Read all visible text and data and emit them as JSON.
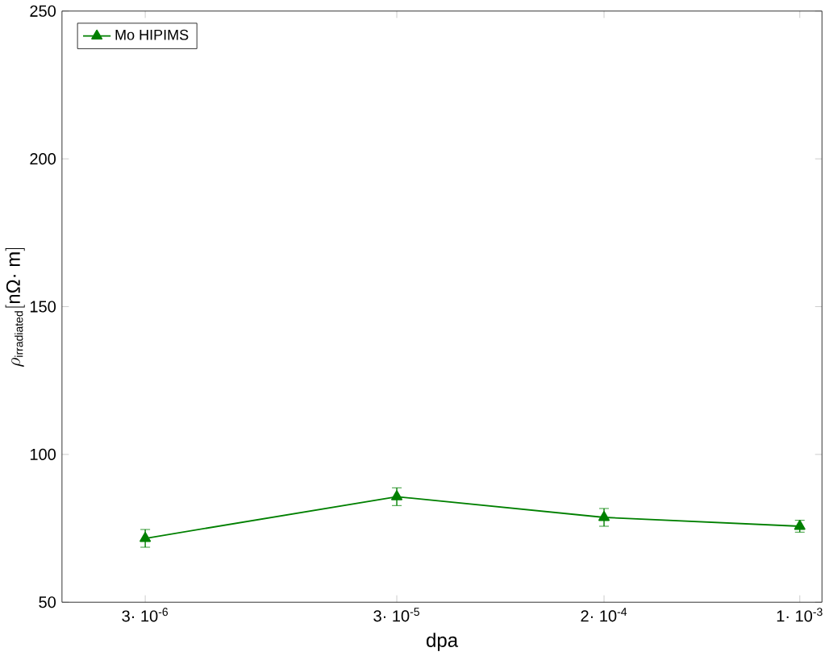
{
  "chart_data": {
    "type": "line",
    "xlabel": "dpa",
    "ylabel": "\\rho_{\\mbox{\\scriptsize irradiated}}[\\mbox{nΩ· m}]",
    "x": [
      3e-06,
      3e-05,
      0.0002,
      0.0012
    ],
    "series": [
      {
        "name": "Mo HIPIMS",
        "color": "#008000",
        "values": [
          71.6,
          85.7,
          78.7,
          75.7
        ],
        "errors": [
          3,
          3,
          3,
          2
        ]
      }
    ],
    "log": "x",
    "xlim": [
      1.4e-06,
      0.00147
    ],
    "ylim": [
      50,
      250
    ],
    "xticks": [
      {
        "value": 3e-06,
        "label": "3· 10$^{-6}$"
      },
      {
        "value": 3e-05,
        "label": "3· 10$^{-5}$"
      },
      {
        "value": 0.0002,
        "label": "2· 10$^{-4}$"
      },
      {
        "value": 0.0012,
        "label": "1· 10$^{-3}$"
      }
    ],
    "yticks": [
      50,
      100,
      150,
      200,
      250
    ],
    "marker": "triangle",
    "line_style": "solid",
    "legend": "top left",
    "grid": false
  }
}
